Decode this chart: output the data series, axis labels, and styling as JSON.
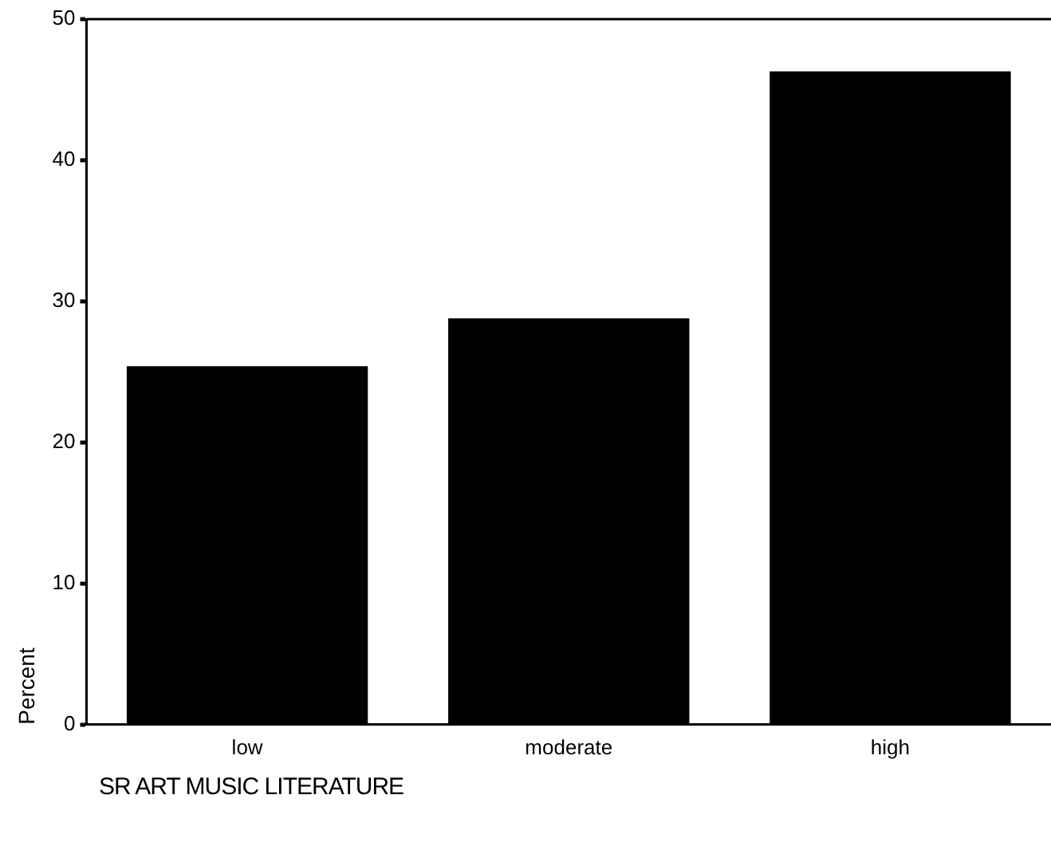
{
  "chart_data": {
    "type": "bar",
    "xlabel": "SR ART MUSIC LITERATURE",
    "ylabel": "Percent",
    "categories": [
      "low",
      "moderate",
      "high"
    ],
    "values": [
      25.4,
      28.8,
      46.3
    ],
    "color": "#000000",
    "ylim": [
      0,
      50
    ],
    "yticks": [
      0,
      10,
      20,
      30,
      40,
      50
    ],
    "grid": false,
    "legend": false
  }
}
